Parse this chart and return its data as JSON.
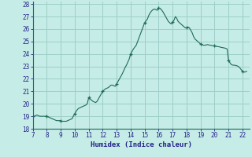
{
  "xlabel": "Humidex (Indice chaleur)",
  "xlim": [
    7,
    22.5
  ],
  "ylim": [
    18,
    28.2
  ],
  "xticks": [
    7,
    8,
    9,
    10,
    11,
    12,
    13,
    14,
    15,
    16,
    17,
    18,
    19,
    20,
    21,
    22
  ],
  "yticks": [
    18,
    19,
    20,
    21,
    22,
    23,
    24,
    25,
    26,
    27,
    28
  ],
  "bg_color": "#c5ece6",
  "grid_color": "#9dcfc9",
  "line_color": "#1f6b57",
  "x": [
    7.0,
    7.1,
    7.2,
    7.3,
    7.4,
    7.5,
    7.6,
    7.7,
    7.8,
    7.9,
    8.0,
    8.1,
    8.2,
    8.3,
    8.4,
    8.5,
    8.6,
    8.7,
    8.8,
    8.9,
    9.0,
    9.1,
    9.2,
    9.3,
    9.4,
    9.5,
    9.6,
    9.7,
    9.8,
    9.9,
    10.0,
    10.1,
    10.2,
    10.3,
    10.4,
    10.5,
    10.6,
    10.7,
    10.8,
    10.9,
    11.0,
    11.1,
    11.2,
    11.3,
    11.4,
    11.5,
    11.6,
    11.7,
    11.8,
    11.9,
    12.0,
    12.1,
    12.2,
    12.3,
    12.4,
    12.5,
    12.6,
    12.7,
    12.8,
    12.9,
    13.0,
    13.1,
    13.2,
    13.3,
    13.4,
    13.5,
    13.6,
    13.7,
    13.8,
    13.9,
    14.0,
    14.1,
    14.2,
    14.3,
    14.4,
    14.5,
    14.6,
    14.7,
    14.8,
    14.9,
    15.0,
    15.1,
    15.2,
    15.3,
    15.4,
    15.5,
    15.6,
    15.7,
    15.8,
    15.9,
    16.0,
    16.1,
    16.2,
    16.3,
    16.4,
    16.5,
    16.6,
    16.7,
    16.8,
    16.9,
    17.0,
    17.1,
    17.2,
    17.3,
    17.4,
    17.5,
    17.6,
    17.7,
    17.8,
    17.9,
    18.0,
    18.1,
    18.2,
    18.3,
    18.4,
    18.5,
    18.6,
    18.7,
    18.8,
    18.9,
    19.0,
    19.1,
    19.2,
    19.3,
    19.4,
    19.5,
    19.6,
    19.7,
    19.8,
    19.9,
    20.0,
    20.1,
    20.2,
    20.3,
    20.4,
    20.5,
    20.6,
    20.7,
    20.8,
    20.9,
    21.0,
    21.1,
    21.2,
    21.3,
    21.4,
    21.5,
    21.6,
    21.7,
    21.8,
    21.9,
    22.0,
    22.1,
    22.2,
    22.3
  ],
  "y": [
    19.0,
    19.0,
    19.05,
    19.1,
    19.05,
    19.0,
    19.0,
    19.0,
    19.0,
    19.0,
    19.0,
    18.95,
    18.9,
    18.85,
    18.8,
    18.75,
    18.7,
    18.65,
    18.65,
    18.65,
    18.65,
    18.6,
    18.6,
    18.6,
    18.6,
    18.65,
    18.7,
    18.75,
    18.8,
    19.0,
    19.2,
    19.4,
    19.55,
    19.65,
    19.7,
    19.75,
    19.8,
    19.85,
    19.9,
    20.0,
    20.5,
    20.4,
    20.3,
    20.2,
    20.15,
    20.1,
    20.2,
    20.4,
    20.6,
    20.8,
    21.0,
    21.1,
    21.2,
    21.25,
    21.3,
    21.4,
    21.5,
    21.5,
    21.45,
    21.4,
    21.6,
    21.8,
    22.0,
    22.2,
    22.4,
    22.65,
    22.9,
    23.1,
    23.35,
    23.6,
    24.0,
    24.2,
    24.4,
    24.55,
    24.7,
    25.0,
    25.3,
    25.6,
    25.9,
    26.2,
    26.5,
    26.65,
    26.8,
    27.1,
    27.3,
    27.45,
    27.55,
    27.6,
    27.55,
    27.5,
    27.7,
    27.65,
    27.55,
    27.4,
    27.2,
    27.0,
    26.8,
    26.6,
    26.5,
    26.4,
    26.55,
    26.7,
    27.0,
    26.85,
    26.6,
    26.5,
    26.4,
    26.3,
    26.2,
    26.1,
    26.1,
    26.15,
    26.1,
    25.9,
    25.7,
    25.4,
    25.2,
    25.1,
    25.0,
    24.9,
    24.8,
    24.75,
    24.7,
    24.7,
    24.72,
    24.75,
    24.72,
    24.7,
    24.68,
    24.65,
    24.65,
    24.6,
    24.6,
    24.58,
    24.55,
    24.52,
    24.5,
    24.48,
    24.45,
    24.4,
    23.5,
    23.3,
    23.15,
    23.1,
    23.1,
    23.08,
    23.05,
    23.0,
    22.9,
    22.75,
    22.6,
    22.55,
    22.55,
    22.6
  ],
  "marker_x": [
    7.0,
    8.0,
    9.0,
    10.0,
    11.0,
    12.0,
    13.0,
    14.0,
    15.0,
    16.0,
    17.0,
    18.0,
    19.0,
    20.0,
    21.0,
    22.0
  ],
  "marker_y": [
    19.0,
    19.0,
    18.65,
    19.2,
    20.5,
    21.0,
    21.6,
    24.0,
    26.5,
    27.7,
    26.55,
    26.1,
    24.8,
    24.65,
    23.5,
    22.6
  ]
}
